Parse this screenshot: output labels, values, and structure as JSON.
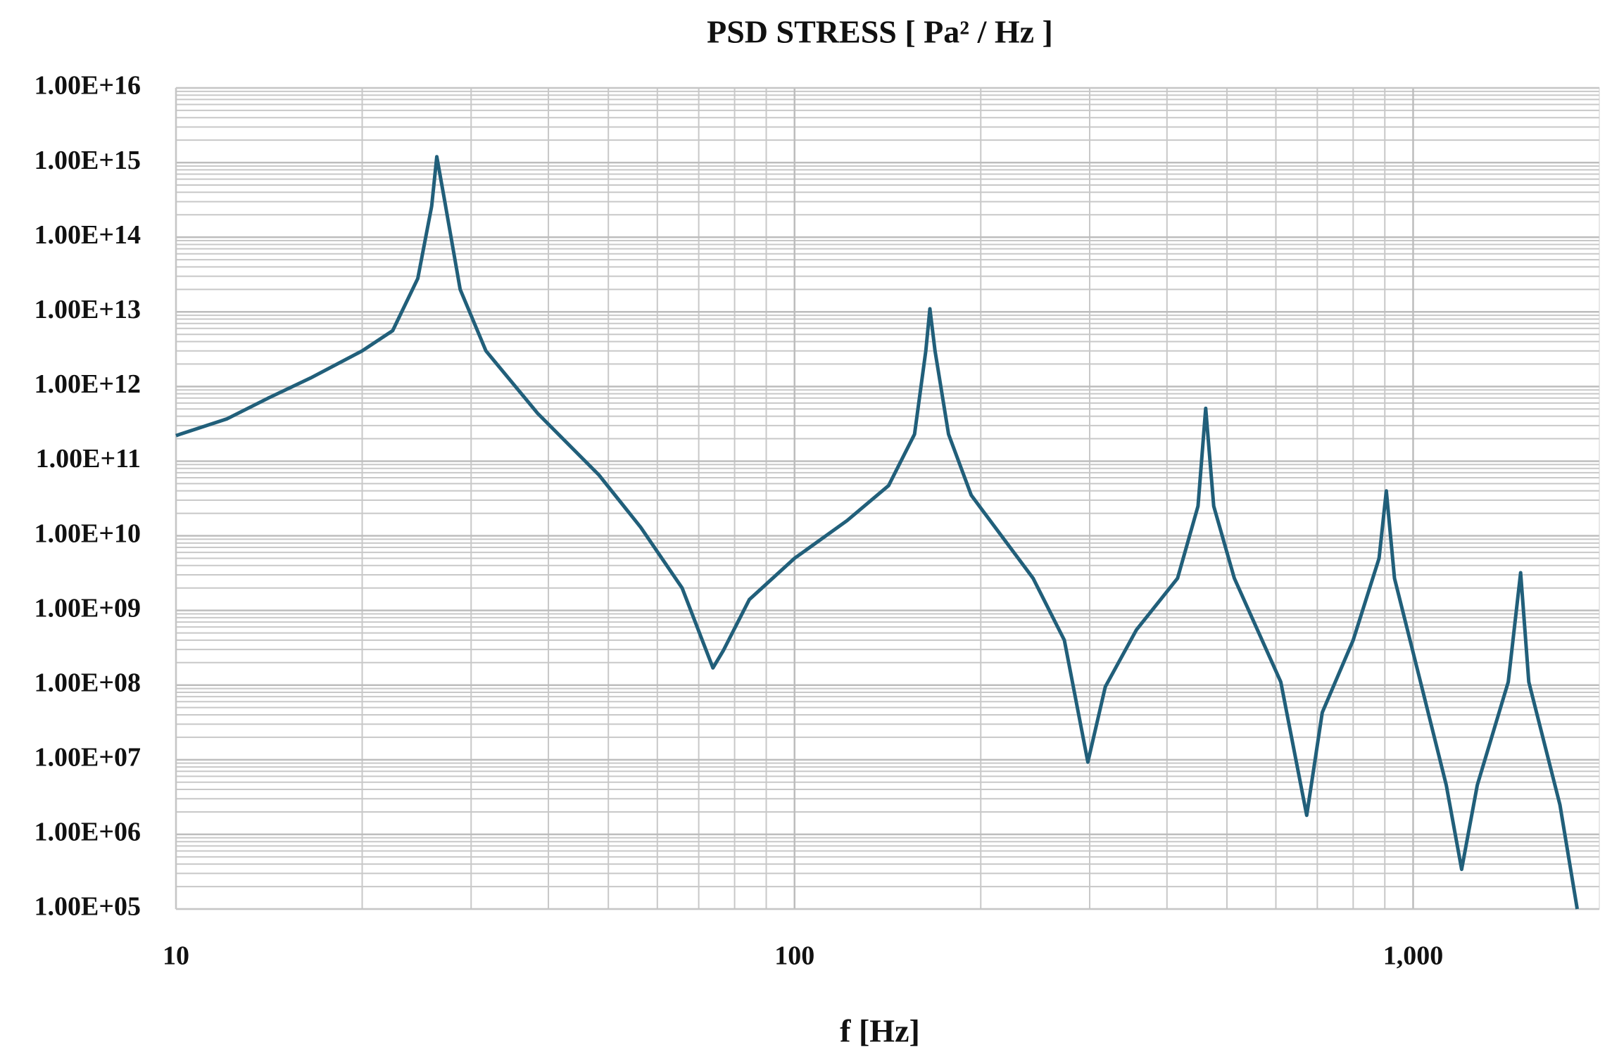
{
  "chart_data": {
    "type": "line",
    "title": "PSD STRESS [ Pa² / Hz ]",
    "x_label": "f  [Hz]",
    "x": [
      10,
      12.1,
      14.1,
      16.5,
      20,
      22.4,
      24.6,
      25.9,
      26.4,
      27.2,
      28.8,
      31.7,
      38.4,
      48.3,
      56.4,
      65.8,
      73.8,
      76.7,
      84.5,
      100,
      121.6,
      141.9,
      156.3,
      163,
      165.5,
      168.7,
      177.4,
      193,
      243,
      273,
      298,
      318,
      357,
      416,
      449,
      462,
      476,
      514,
      611,
      673,
      713,
      800,
      881,
      905,
      933,
      1028,
      1131,
      1198,
      1270,
      1425,
      1492,
      1538,
      1727,
      1842
    ],
    "values": [
      220000000000.0,
      370000000000.0,
      700000000000.0,
      1300000000000.0,
      3000000000000.0,
      5600000000000.0,
      28000000000000.0,
      260000000000000.0,
      1200000000000000.0,
      300000000000000.0,
      20000000000000.0,
      3000000000000.0,
      440000000000.0,
      65000000000.0,
      13000000000.0,
      2000000000.0,
      170000000.0,
      290000000.0,
      1400000000.0,
      5000000000.0,
      16000000000.0,
      47000000000.0,
      230000000000.0,
      3000000000000.0,
      11000000000000.0,
      3000000000000.0,
      230000000000.0,
      35000000000.0,
      2700000000.0,
      400000000.0,
      9300000.0,
      95000000.0,
      550000000.0,
      2700000000.0,
      25000000000.0,
      510000000000.0,
      25000000000.0,
      2700000000.0,
      110000000.0,
      1800000.0,
      43000000.0,
      400000000.0,
      5000000000.0,
      40000000000.0,
      2700000000.0,
      110000000.0,
      4600000.0,
      340000.0,
      4600000.0,
      110000000.0,
      3200000000.0,
      110000000.0,
      2500000.0,
      100000.0
    ],
    "color": "#215f7a",
    "xlim": [
      10,
      2000
    ],
    "ylim": [
      100000.0,
      1e+16
    ],
    "xticks": [
      10,
      100,
      {
        "value": 1000,
        "label": "1,000"
      }
    ],
    "yticks": [
      {
        "value": 100000.0,
        "label": "1.00E+05"
      },
      {
        "value": 1000000.0,
        "label": "1.00E+06"
      },
      {
        "value": 10000000.0,
        "label": "1.00E+07"
      },
      {
        "value": 100000000.0,
        "label": "1.00E+08"
      },
      {
        "value": 1000000000.0,
        "label": "1.00E+09"
      },
      {
        "value": 10000000000.0,
        "label": "1.00E+10"
      },
      {
        "value": 100000000000.0,
        "label": "1.00E+11"
      },
      {
        "value": 1000000000000.0,
        "label": "1.00E+12"
      },
      {
        "value": 10000000000000.0,
        "label": "1.00E+13"
      },
      {
        "value": 100000000000000.0,
        "label": "1.00E+14"
      },
      {
        "value": 1000000000000000.0,
        "label": "1.00E+15"
      },
      {
        "value": 1e+16,
        "label": "1.00E+16"
      }
    ],
    "x_log": true,
    "y_log": true,
    "grid": true,
    "minor_grid": true
  }
}
